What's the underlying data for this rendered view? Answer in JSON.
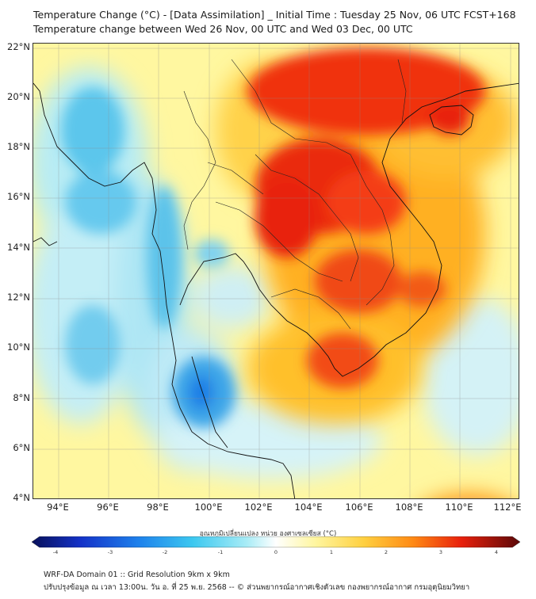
{
  "title": {
    "line1": "Temperature Change (°C) - [Data Assimilation] _ Initial Time : Tuesday 25 Nov, 06 UTC FCST+168",
    "line2": "Temperature change between Wed 26 Nov, 00 UTC and Wed 03 Dec, 00 UTC"
  },
  "map": {
    "lat_labels": [
      "22°N",
      "20°N",
      "18°N",
      "16°N",
      "14°N",
      "12°N",
      "10°N",
      "8°N",
      "6°N",
      "4°N"
    ],
    "lon_labels": [
      "94°E",
      "96°E",
      "98°E",
      "100°E",
      "102°E",
      "104°E",
      "106°E",
      "108°E",
      "110°E",
      "112°E"
    ],
    "lat_range": [
      4,
      22.2
    ],
    "lon_range": [
      93,
      112.4
    ],
    "background_color": "#fff7a0",
    "hot_color": "#e8200c",
    "cold_color": "#1a7fe6"
  },
  "colorbar": {
    "label": "อุณหภูมิเปลี่ยนแปลง หน่วย องศาเซลเซียส (°C)",
    "ticks": [
      "-4",
      "-3",
      "-2",
      "-1",
      "0",
      "1",
      "2",
      "3",
      "4"
    ],
    "min": -4,
    "max": 4
  },
  "footer": {
    "line1": "WRF-DA Domain 01 :: Grid Resolution 9km x 9km",
    "line2": "ปรับปรุงข้อมูล ณ เวลา 13:00น. วัน อ. ที่ 25 พ.ย. 2568 -- © ส่วนพยากรณ์อากาศเชิงตัวเลข กองพยากรณ์อากาศ กรมอุตุนิยมวิทยา"
  }
}
